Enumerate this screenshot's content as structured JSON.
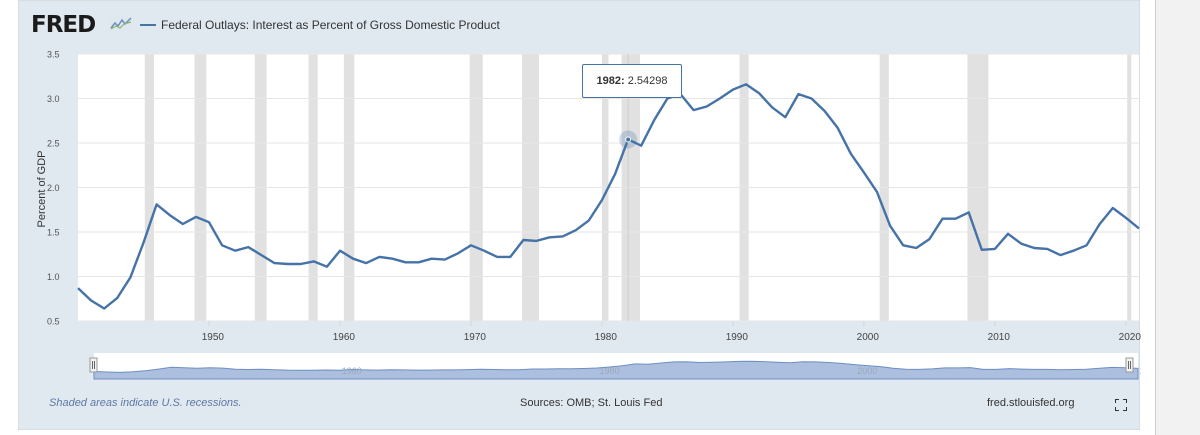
{
  "brand": "FRED",
  "series_title": "Federal Outlays: Interest as Percent of Gross Domestic Product",
  "footer": {
    "note": "Shaded areas indicate U.S. recessions.",
    "sources": "Sources: OMB; St. Louis Fed",
    "site": "fred.stlouisfed.org"
  },
  "tooltip": {
    "year": "1982:",
    "value": "2.54298"
  },
  "icons": {
    "logo": "fred-chart-icon",
    "fullscreen": "fullscreen-icon"
  },
  "colors": {
    "line": "#4572a7",
    "recession": "#e1e1e1",
    "background": "#e1e9f0",
    "navigator": "#9db4d9"
  },
  "navigator_labels": [
    "1960",
    "1980",
    "2000",
    "20"
  ],
  "chart_data": {
    "type": "line",
    "ylabel": "Percent of GDP",
    "ylim": [
      0.5,
      3.5
    ],
    "yticks": [
      "0.5",
      "1.0",
      "1.5",
      "2.0",
      "2.5",
      "3.0",
      "3.5"
    ],
    "xticks": [
      "1950",
      "1960",
      "1970",
      "1980",
      "1990",
      "2000",
      "2010",
      "2020"
    ],
    "grid": true,
    "recessions": [
      [
        1945.1,
        1945.8
      ],
      [
        1948.9,
        1949.8
      ],
      [
        1953.5,
        1954.4
      ],
      [
        1957.6,
        1958.3
      ],
      [
        1960.3,
        1961.1
      ],
      [
        1969.9,
        1970.9
      ],
      [
        1973.9,
        1975.2
      ],
      [
        1980.0,
        1980.5
      ],
      [
        1981.5,
        1982.9
      ],
      [
        1990.5,
        1991.2
      ],
      [
        2001.2,
        2001.9
      ],
      [
        2007.9,
        2009.5
      ],
      [
        2020.1,
        2020.4
      ]
    ],
    "series": [
      {
        "x": [
          1940,
          1941,
          1942,
          1943,
          1944,
          1945,
          1946,
          1947,
          1948,
          1949,
          1950,
          1951,
          1952,
          1953,
          1954,
          1955,
          1956,
          1957,
          1958,
          1959,
          1960,
          1961,
          1962,
          1963,
          1964,
          1965,
          1966,
          1967,
          1968,
          1969,
          1970,
          1971,
          1972,
          1973,
          1974,
          1975,
          1976,
          1977,
          1978,
          1979,
          1980,
          1981,
          1982,
          1983,
          1984,
          1985,
          1986,
          1987,
          1988,
          1989,
          1990,
          1991,
          1992,
          1993,
          1994,
          1995,
          1996,
          1997,
          1998,
          1999,
          2000,
          2001,
          2002,
          2003,
          2004,
          2005,
          2006,
          2007,
          2008,
          2009,
          2010,
          2011,
          2012,
          2013,
          2014,
          2015,
          2016,
          2017,
          2018,
          2019,
          2020,
          2021
        ],
        "y": [
          0.87,
          0.73,
          0.64,
          0.76,
          0.99,
          1.38,
          1.81,
          1.69,
          1.59,
          1.67,
          1.61,
          1.35,
          1.29,
          1.33,
          1.24,
          1.15,
          1.14,
          1.14,
          1.17,
          1.11,
          1.29,
          1.2,
          1.15,
          1.22,
          1.2,
          1.16,
          1.16,
          1.2,
          1.19,
          1.26,
          1.35,
          1.29,
          1.22,
          1.22,
          1.41,
          1.4,
          1.44,
          1.45,
          1.52,
          1.63,
          1.86,
          2.15,
          2.54,
          2.47,
          2.76,
          3.0,
          3.05,
          2.87,
          2.91,
          3.0,
          3.1,
          3.16,
          3.06,
          2.9,
          2.79,
          3.05,
          3.0,
          2.86,
          2.67,
          2.38,
          2.17,
          1.95,
          1.57,
          1.35,
          1.32,
          1.42,
          1.65,
          1.65,
          1.72,
          1.3,
          1.31,
          1.48,
          1.37,
          1.32,
          1.31,
          1.24,
          1.29,
          1.35,
          1.59,
          1.77,
          1.66,
          1.54
        ]
      }
    ]
  }
}
